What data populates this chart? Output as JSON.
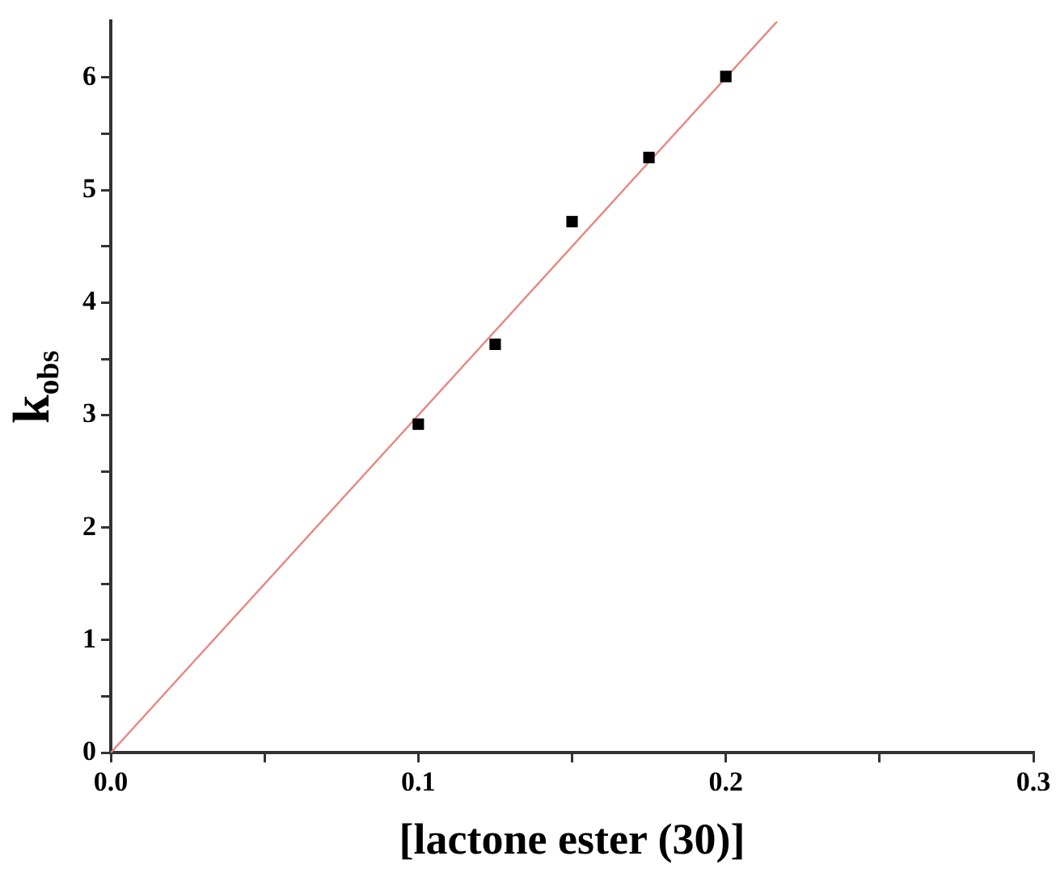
{
  "chart_data": {
    "type": "scatter",
    "xlabel": "[lactone ester (30)]",
    "ylabel": "k$_{obs}$",
    "xlim": [
      0,
      0.3
    ],
    "ylim": [
      0,
      6.5
    ],
    "xticks": [
      {
        "value": 0,
        "label": "0.0"
      },
      {
        "value": 0.05,
        "label": null
      },
      0.1,
      {
        "value": 0.15,
        "label": null
      },
      0.2,
      {
        "value": 0.25,
        "label": null
      },
      0.3
    ],
    "yticks": [
      0,
      {
        "value": 0.5,
        "label": null
      },
      1,
      {
        "value": 1.5,
        "label": null
      },
      2,
      {
        "value": 2.5,
        "label": null
      },
      3,
      {
        "value": 3.5,
        "label": null
      },
      4,
      {
        "value": 4.5,
        "label": null
      },
      5,
      {
        "value": 5.5,
        "label": null
      },
      6
    ],
    "grid": false,
    "legend": false,
    "series": [
      {
        "type": "line",
        "color": "#e8867f",
        "x": [
          0,
          0.2167
        ],
        "values": [
          0,
          6.5
        ],
        "marker": "none",
        "line_style": "solid"
      },
      {
        "type": "scatter",
        "color": "#000000",
        "x": [
          0.1,
          0.125,
          0.15,
          0.175,
          0.2
        ],
        "values": [
          2.92,
          3.63,
          4.72,
          5.29,
          6.01
        ],
        "marker": "square"
      }
    ]
  }
}
